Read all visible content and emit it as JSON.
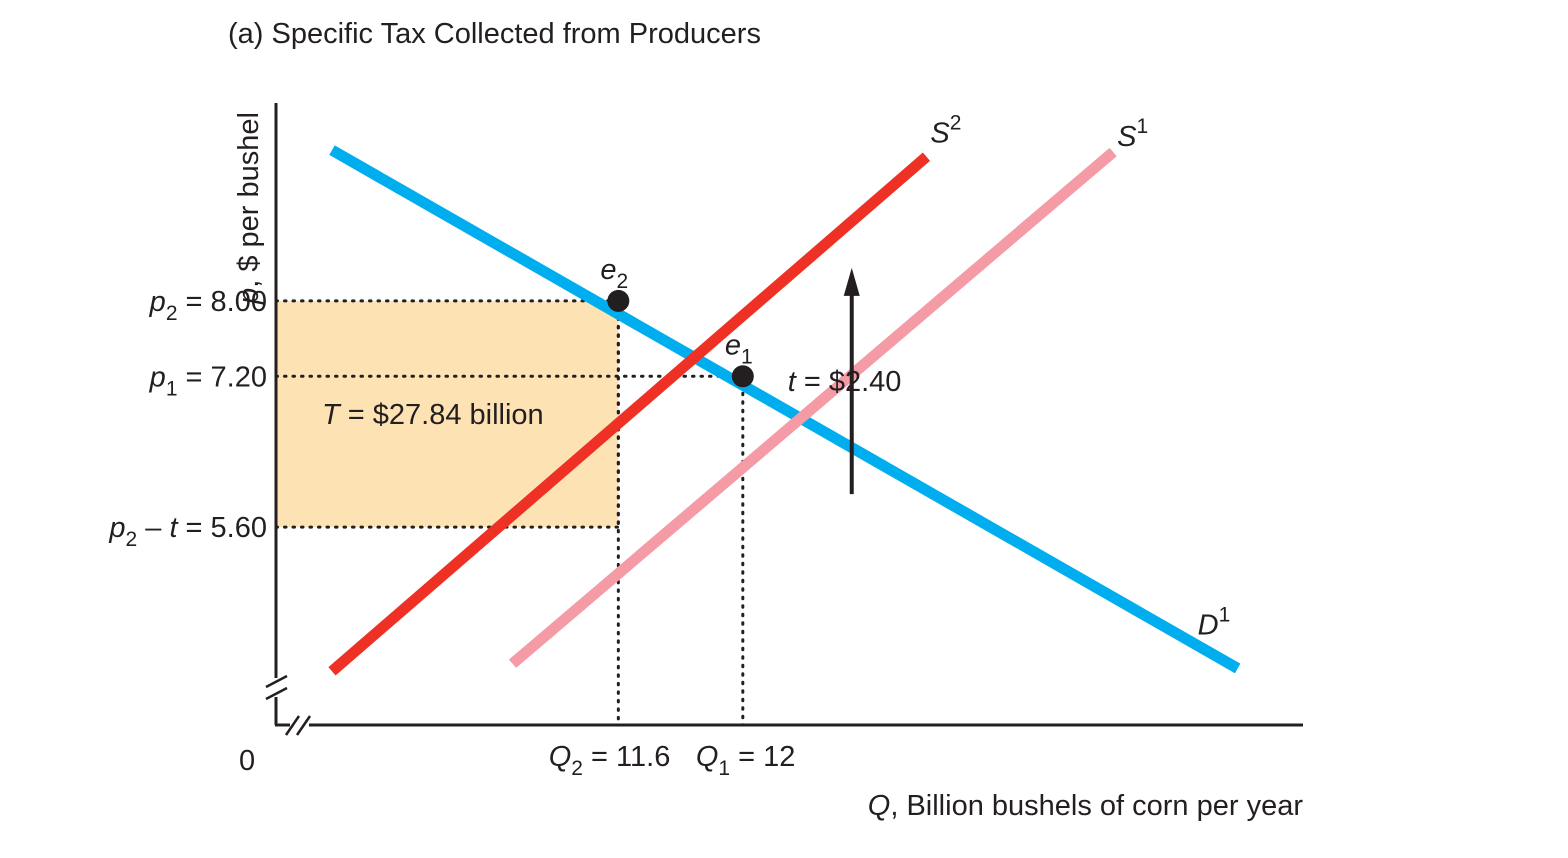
{
  "chart_data": {
    "type": "line",
    "title": "(a) Specific Tax Collected from Producers",
    "xlabel": {
      "var": "Q",
      "text": ", Billion bushels of corn per year"
    },
    "ylabel": {
      "var": "p",
      "text": ", $ per bushel"
    },
    "origin_label": "0",
    "xlim": [
      10.5,
      13.8
    ],
    "ylim": [
      3.5,
      10.1
    ],
    "axis_breaks": true,
    "grid": false,
    "colors": {
      "demand": "#00aeef",
      "supply_after": "#ee3124",
      "supply_before": "#f49ba6",
      "tax_area": "#fde2b4"
    },
    "series": [
      {
        "name": "D",
        "sup": "1",
        "x": [
          10.68,
          13.59
        ],
        "y": [
          9.6,
          4.1
        ]
      },
      {
        "name": "S",
        "sup": "2",
        "x": [
          10.68,
          12.59
        ],
        "y": [
          4.07,
          9.53
        ]
      },
      {
        "name": "S",
        "sup": "1",
        "x": [
          11.26,
          13.19
        ],
        "y": [
          4.15,
          9.58
        ]
      }
    ],
    "points": [
      {
        "label": "e",
        "sub": "2",
        "x": 11.6,
        "y": 8.0
      },
      {
        "label": "e",
        "sub": "1",
        "x": 12.0,
        "y": 7.2
      }
    ],
    "price_ticks": [
      {
        "var": "p",
        "sub": "2",
        "rest": " = 8.00",
        "y": 8.0
      },
      {
        "var": "p",
        "sub": "1",
        "rest": " = 7.20",
        "y": 7.2
      },
      {
        "var": "p",
        "sub": "2",
        "mid": " – ",
        "var2": "t",
        "rest": " = 5.60",
        "y": 5.6
      }
    ],
    "quantity_ticks": [
      {
        "var": "Q",
        "sub": "2",
        "rest": " = 11.6",
        "x": 11.6
      },
      {
        "var": "Q",
        "sub": "1",
        "rest": " = 12",
        "x": 12.0
      }
    ],
    "tax_rectangle": {
      "x0": 10.5,
      "x1": 11.6,
      "y0": 5.6,
      "y1": 8.0,
      "var": "T",
      "text": " = $27.84 billion"
    },
    "tax_arrow": {
      "x": 12.35,
      "y_from": 5.95,
      "y_to": 8.35,
      "var": "t",
      "text": " = $2.40"
    }
  }
}
